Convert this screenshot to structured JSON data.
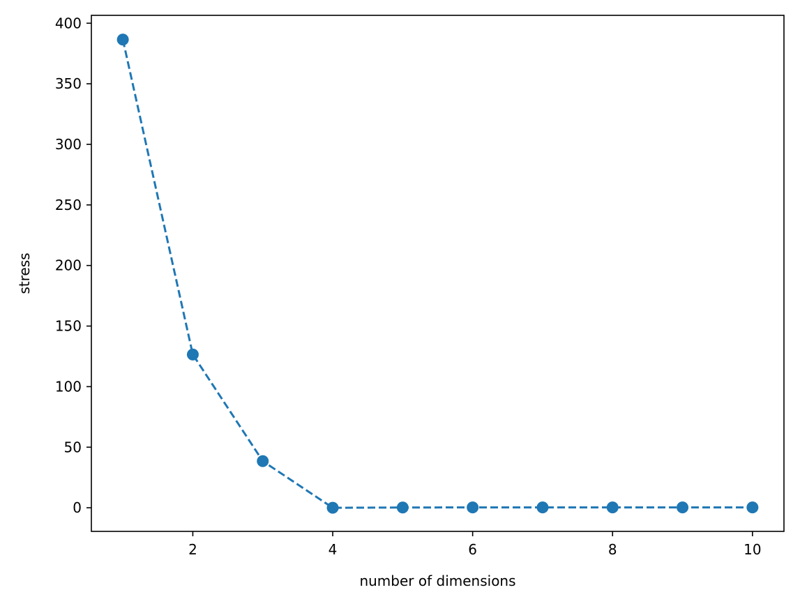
{
  "chart_data": {
    "type": "line",
    "xlabel": "number of dimensions",
    "ylabel": "stress",
    "xlim": [
      0.55,
      10.45
    ],
    "ylim": [
      -19.5,
      406.5
    ],
    "xticks": [
      2,
      4,
      6,
      8,
      10
    ],
    "yticks": [
      0,
      50,
      100,
      150,
      200,
      250,
      300,
      350,
      400
    ],
    "grid": false,
    "series": [
      {
        "x": [
          1,
          2,
          3,
          4,
          5,
          6,
          7,
          8,
          9,
          10
        ],
        "values": [
          386.5,
          126.5,
          38.5,
          0,
          0.2,
          0.3,
          0.3,
          0.3,
          0.3,
          0.3
        ],
        "color": "#1f77b4",
        "line_style": "dashed",
        "marker": "circle"
      }
    ]
  }
}
